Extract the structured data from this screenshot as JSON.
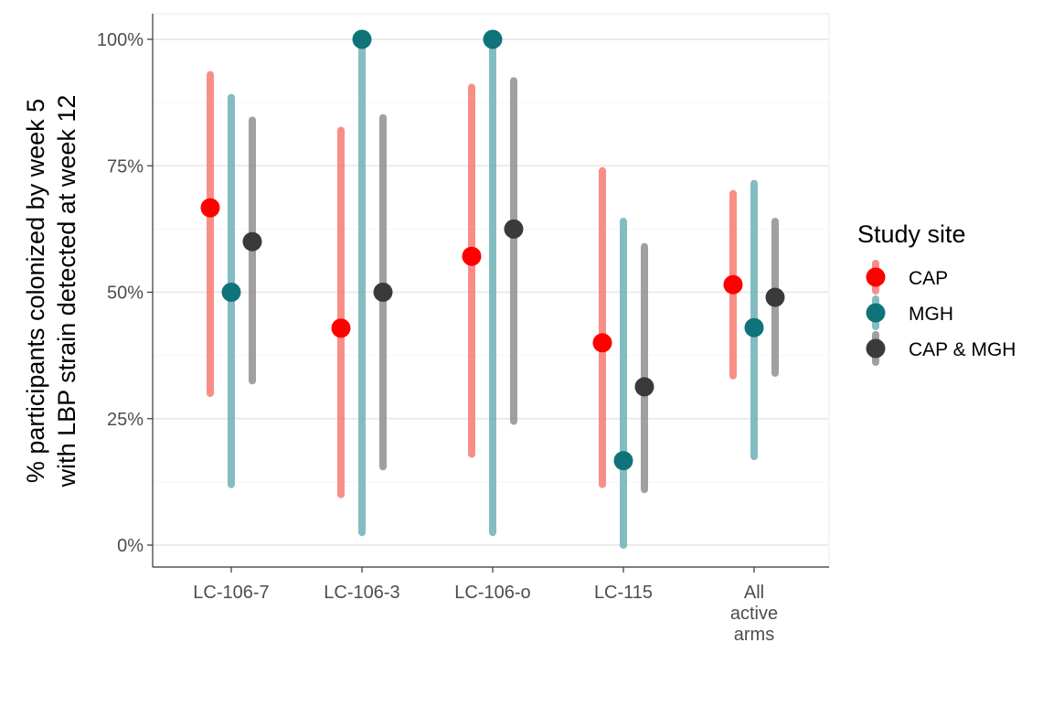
{
  "chart_data": {
    "type": "pointrange",
    "ylabel_lines": [
      "% participants colonized by week 5",
      "with LBP strain detected at week 12"
    ],
    "ylim": [
      0,
      1
    ],
    "y_ticks": [
      {
        "value": 0,
        "label": "0%"
      },
      {
        "value": 0.25,
        "label": "25%"
      },
      {
        "value": 0.5,
        "label": "50%"
      },
      {
        "value": 0.75,
        "label": "75%"
      },
      {
        "value": 1,
        "label": "100%"
      }
    ],
    "categories": [
      {
        "key": "LC-106-7",
        "lines": [
          "LC-106-7"
        ]
      },
      {
        "key": "LC-106-3",
        "lines": [
          "LC-106-3"
        ]
      },
      {
        "key": "LC-106-o",
        "lines": [
          "LC-106-o"
        ]
      },
      {
        "key": "LC-115",
        "lines": [
          "LC-115"
        ]
      },
      {
        "key": "All active arms",
        "lines": [
          "All",
          "active",
          "arms"
        ]
      }
    ],
    "grid": true,
    "legend": {
      "title": "Study site",
      "position": "right"
    },
    "series": [
      {
        "name": "CAP",
        "point_color": "#FF0000",
        "bar_color": "#F8766D",
        "values": [
          0.667,
          0.429,
          0.571,
          0.4,
          0.515
        ],
        "lower": [
          0.3,
          0.1,
          0.18,
          0.12,
          0.335
        ],
        "upper": [
          0.93,
          0.82,
          0.905,
          0.74,
          0.695
        ]
      },
      {
        "name": "MGH",
        "point_color": "#0E7479",
        "bar_color": "#6AAFB4",
        "values": [
          0.5,
          1.0,
          1.0,
          0.167,
          0.43
        ],
        "lower": [
          0.12,
          0.025,
          0.025,
          0.0,
          0.175
        ],
        "upper": [
          0.885,
          1.0,
          1.0,
          0.64,
          0.715
        ]
      },
      {
        "name": "CAP & MGH",
        "point_color": "#3A3A3A",
        "bar_color": "#8C8C8C",
        "values": [
          0.6,
          0.5,
          0.625,
          0.313,
          0.49
        ],
        "lower": [
          0.325,
          0.155,
          0.245,
          0.11,
          0.34
        ],
        "upper": [
          0.84,
          0.845,
          0.918,
          0.59,
          0.64
        ]
      }
    ]
  }
}
